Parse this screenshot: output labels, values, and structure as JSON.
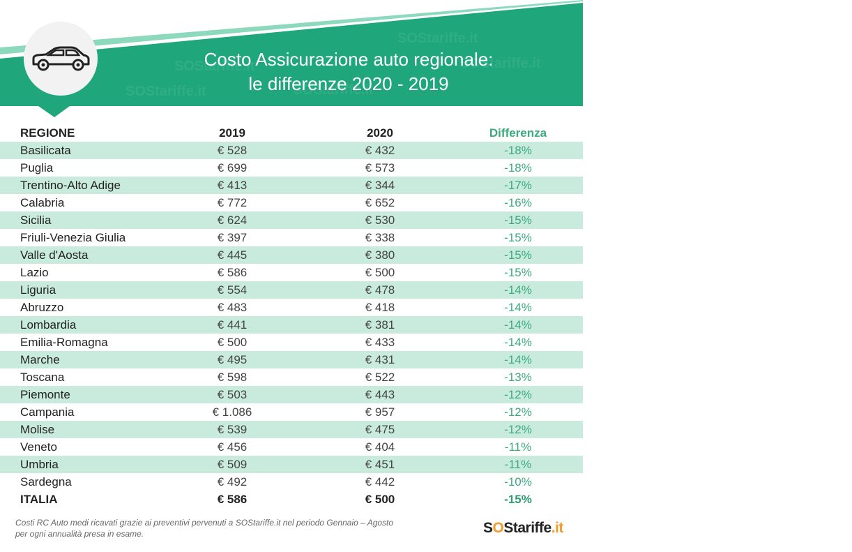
{
  "header": {
    "title_line1": "Costo Assicurazione auto regionale:",
    "title_line2": "le differenze 2020 - 2019",
    "watermark": "SOStariffe.it",
    "icon": "car-icon",
    "colors": {
      "primary": "#1fa67a",
      "light": "#7fd4b5",
      "row_alt": "#c9ebde",
      "accent": "#f29a2e"
    }
  },
  "table": {
    "columns": [
      "REGIONE",
      "2019",
      "2020",
      "Differenza"
    ],
    "rows": [
      [
        "Basilicata",
        "€ 528",
        "€ 432",
        "-18%"
      ],
      [
        "Puglia",
        "€ 699",
        "€ 573",
        "-18%"
      ],
      [
        "Trentino-Alto Adige",
        "€ 413",
        "€ 344",
        "-17%"
      ],
      [
        "Calabria",
        "€ 772",
        "€ 652",
        "-16%"
      ],
      [
        "Sicilia",
        "€ 624",
        "€ 530",
        "-15%"
      ],
      [
        "Friuli-Venezia Giulia",
        "€ 397",
        "€ 338",
        "-15%"
      ],
      [
        "Valle d'Aosta",
        "€ 445",
        "€ 380",
        "-15%"
      ],
      [
        "Lazio",
        "€ 586",
        "€ 500",
        "-15%"
      ],
      [
        "Liguria",
        "€ 554",
        "€ 478",
        "-14%"
      ],
      [
        "Abruzzo",
        "€ 483",
        "€ 418",
        "-14%"
      ],
      [
        "Lombardia",
        "€ 441",
        "€ 381",
        "-14%"
      ],
      [
        "Emilia-Romagna",
        "€ 500",
        "€ 433",
        "-14%"
      ],
      [
        "Marche",
        "€ 495",
        "€ 431",
        "-14%"
      ],
      [
        "Toscana",
        "€ 598",
        "€ 522",
        "-13%"
      ],
      [
        "Piemonte",
        "€ 503",
        "€ 443",
        "-12%"
      ],
      [
        "Campania",
        "€ 1.086",
        "€ 957",
        "-12%"
      ],
      [
        "Molise",
        "€ 539",
        "€ 475",
        "-12%"
      ],
      [
        "Veneto",
        "€ 456",
        "€ 404",
        "-11%"
      ],
      [
        "Umbria",
        "€ 509",
        "€ 451",
        "-11%"
      ],
      [
        "Sardegna",
        "€ 492",
        "€ 442",
        "-10%"
      ]
    ],
    "total": [
      "ITALIA",
      "€ 586",
      "€ 500",
      "-15%"
    ]
  },
  "footer": {
    "note_line1": "Costi RC Auto medi ricavati grazie ai preventivi pervenuti a SOStariffe.it nel periodo Gennaio – Agosto",
    "note_line2": "per ogni annualità presa in esame.",
    "logo_s1": "S",
    "logo_o": "O",
    "logo_rest": "Stariffe",
    "logo_tld": ".it"
  }
}
